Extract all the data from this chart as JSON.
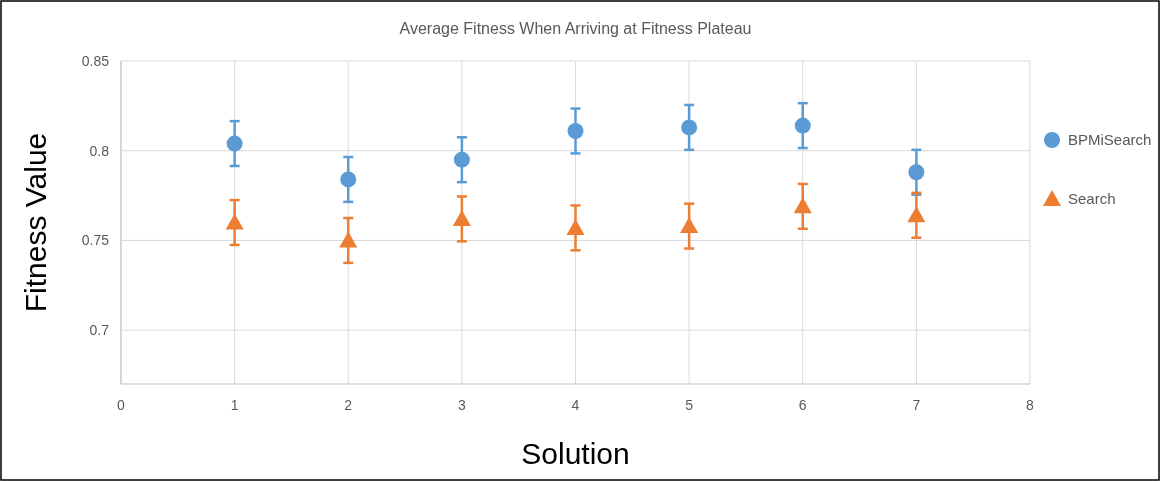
{
  "chart_data": {
    "type": "scatter",
    "title": "Average Fitness When Arriving at Fitness Plateau",
    "xlabel": "Solution",
    "ylabel": "Fitness Value",
    "x": [
      1,
      2,
      3,
      4,
      5,
      6,
      7
    ],
    "series": [
      {
        "name": "BPMiSearch",
        "color": "#5b9bd5",
        "marker": "circle",
        "values": [
          0.804,
          0.784,
          0.795,
          0.811,
          0.813,
          0.814,
          0.788
        ],
        "errors": [
          0.0125,
          0.0125,
          0.0125,
          0.0125,
          0.0125,
          0.0125,
          0.0125
        ]
      },
      {
        "name": "Search",
        "color": "#ed7d31",
        "marker": "triangle",
        "values": [
          0.76,
          0.75,
          0.762,
          0.757,
          0.758,
          0.769,
          0.764
        ],
        "errors": [
          0.0125,
          0.0125,
          0.0125,
          0.0125,
          0.0125,
          0.0125,
          0.0125
        ]
      }
    ],
    "xlim": [
      0,
      8
    ],
    "xticks": [
      0,
      1,
      2,
      3,
      4,
      5,
      6,
      7,
      8
    ],
    "ylim": [
      0.67,
      0.85
    ],
    "yticks": [
      0.7,
      0.75,
      0.8,
      0.85
    ],
    "grid": true,
    "legend": "right"
  }
}
